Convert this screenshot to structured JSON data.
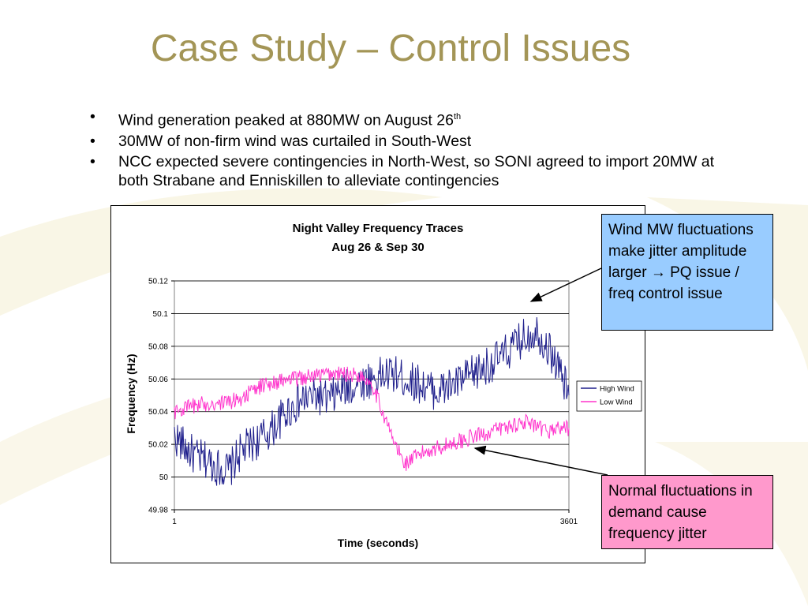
{
  "slide": {
    "title": "Case Study – Control Issues",
    "bullets": [
      {
        "text": "Wind generation peaked at 880MW on August 26",
        "sup": "th"
      },
      {
        "text": "30MW of non-firm wind was curtailed in South-West",
        "sup": ""
      },
      {
        "text": "NCC expected severe contingencies in North-West, so SONI agreed to import 20MW at both Strabane and Enniskillen to alleviate contingencies",
        "sup": ""
      }
    ],
    "bullet_char": "•"
  },
  "callouts": {
    "wind": "Wind MW fluctuations make jitter amplitude larger → PQ issue / freq control issue",
    "normal": "Normal fluctuations in demand cause frequency jitter"
  },
  "colors": {
    "title": "#a39556",
    "high_wind": "#1f1f8c",
    "low_wind": "#ff33cc",
    "callout_blue": "#99ccff",
    "callout_pink": "#ff99cc"
  },
  "chart_data": {
    "type": "line",
    "title": "Night Valley Frequency Traces",
    "subtitle": "Aug 26 & Sep 30",
    "xlabel": "Time (seconds)",
    "ylabel": "Frequency (Hz)",
    "xlim": [
      1,
      3601
    ],
    "x_tick_labels": [
      "1",
      "3601"
    ],
    "ylim": [
      49.98,
      50.12
    ],
    "y_ticks": [
      "49.98",
      "50",
      "50.02",
      "50.04",
      "50.06",
      "50.08",
      "50.1",
      "50.12"
    ],
    "grid": true,
    "legend_position": "right",
    "x": [
      1,
      101,
      201,
      301,
      401,
      501,
      601,
      701,
      801,
      901,
      1001,
      1101,
      1201,
      1301,
      1401,
      1501,
      1601,
      1701,
      1801,
      1901,
      2001,
      2101,
      2201,
      2301,
      2401,
      2501,
      2601,
      2701,
      2801,
      2901,
      3001,
      3101,
      3201,
      3301,
      3401,
      3501,
      3601
    ],
    "series": [
      {
        "name": "High Wind",
        "color": "#1f1f8c",
        "values": [
          50.025,
          50.018,
          50.012,
          50.01,
          50.006,
          50.004,
          50.015,
          50.02,
          50.024,
          50.03,
          50.038,
          50.044,
          50.048,
          50.05,
          50.047,
          50.052,
          50.055,
          50.058,
          50.06,
          50.062,
          50.063,
          50.06,
          50.058,
          50.055,
          50.052,
          50.055,
          50.058,
          50.062,
          50.066,
          50.07,
          50.074,
          50.08,
          50.086,
          50.09,
          50.08,
          50.068,
          50.05
        ]
      },
      {
        "name": "Low Wind",
        "color": "#ff33cc",
        "values": [
          50.04,
          50.042,
          50.044,
          50.045,
          50.045,
          50.046,
          50.048,
          50.052,
          50.056,
          50.058,
          50.059,
          50.06,
          50.061,
          50.062,
          50.063,
          50.063,
          50.063,
          50.062,
          50.058,
          50.04,
          50.022,
          50.008,
          50.012,
          50.016,
          50.018,
          50.02,
          50.022,
          50.024,
          50.026,
          50.028,
          50.03,
          50.032,
          50.034,
          50.03,
          50.028,
          50.03,
          50.03
        ]
      }
    ]
  }
}
